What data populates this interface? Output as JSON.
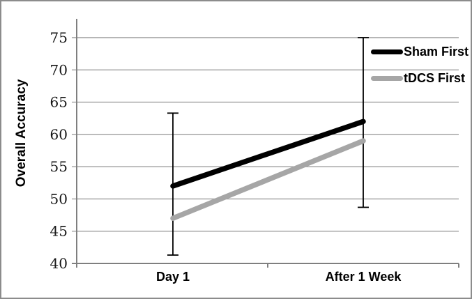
{
  "chart_data": {
    "type": "line",
    "title": "",
    "xlabel": "",
    "ylabel": "Overall Accuracy",
    "categories": [
      "Day 1",
      "After 1 Week"
    ],
    "series": [
      {
        "name": "Sham First",
        "color": "#000000",
        "values": [
          52,
          62
        ],
        "error_upper": [
          63.3,
          75.0
        ],
        "error_lower": [
          41.3,
          48.7
        ]
      },
      {
        "name": "tDCS First",
        "color": "#a6a6a6",
        "values": [
          47,
          59
        ]
      }
    ],
    "ylim": [
      40,
      75
    ],
    "yticks": [
      40,
      45,
      50,
      55,
      60,
      65,
      70,
      75
    ],
    "grid": true,
    "legend_position": "inside-top-right",
    "colors": {
      "gridline": "#9e9e9e",
      "axis": "#7f7f7f",
      "error_bar": "#000000",
      "tick_text": "#151515",
      "label_text": "#000000",
      "figure_border": "#8c8c8c",
      "background": "#ffffff"
    }
  }
}
